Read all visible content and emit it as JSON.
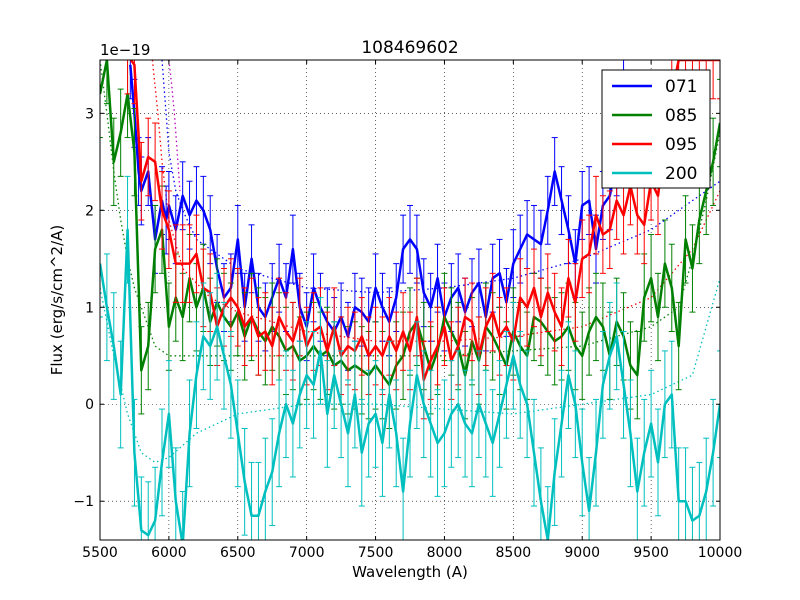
{
  "chart_data": {
    "type": "line",
    "title": "108469602",
    "xlabel": "Wavelength (A)",
    "ylabel": "Flux (erg/s/cm^2/A)",
    "offset_label": "1e−19",
    "xlim": [
      5500,
      10000
    ],
    "ylim": [
      -1.4,
      3.55
    ],
    "xticks": [
      5500,
      6000,
      6500,
      7000,
      7500,
      8000,
      8500,
      9000,
      9500,
      10000
    ],
    "yticks": [
      -1,
      0,
      1,
      2,
      3
    ],
    "ytick_labels": [
      "−1",
      "0",
      "1",
      "2",
      "3"
    ],
    "grid": true,
    "legend_position": "top-right",
    "series": [
      {
        "name": "071",
        "color": "#0000ff",
        "x": [
          5720,
          5750,
          5780,
          5800,
          5850,
          5900,
          5950,
          5980,
          6000,
          6050,
          6100,
          6150,
          6200,
          6250,
          6300,
          6350,
          6400,
          6450,
          6500,
          6550,
          6600,
          6650,
          6700,
          6750,
          6800,
          6850,
          6900,
          6950,
          7000,
          7050,
          7100,
          7150,
          7200,
          7250,
          7300,
          7350,
          7400,
          7450,
          7500,
          7550,
          7600,
          7650,
          7700,
          7750,
          7800,
          7850,
          7900,
          7950,
          8000,
          8050,
          8100,
          8150,
          8200,
          8250,
          8300,
          8350,
          8400,
          8450,
          8500,
          8550,
          8600,
          8650,
          8700,
          8750,
          8800,
          8850,
          8900,
          8950,
          9000,
          9050,
          9100,
          9150,
          9200,
          9250,
          9300
        ],
        "y": [
          3.5,
          3.0,
          2.4,
          2.2,
          2.4,
          1.7,
          2.1,
          1.9,
          2.05,
          1.8,
          2.15,
          1.95,
          2.1,
          2.0,
          1.8,
          1.4,
          1.1,
          1.2,
          1.7,
          1.0,
          1.5,
          1.0,
          0.9,
          1.1,
          1.3,
          1.1,
          1.6,
          1.0,
          0.8,
          1.2,
          1.0,
          0.85,
          0.75,
          0.9,
          0.7,
          1.0,
          0.95,
          0.85,
          1.2,
          1.0,
          0.85,
          1.1,
          1.6,
          1.7,
          1.6,
          1.15,
          1.0,
          1.3,
          0.9,
          1.1,
          1.2,
          0.95,
          1.15,
          1.25,
          0.9,
          1.3,
          1.35,
          1.05,
          1.45,
          1.6,
          1.75,
          1.7,
          1.65,
          2.0,
          2.4,
          2.1,
          1.8,
          1.45,
          2.05,
          2.1,
          1.6,
          2.05,
          2.15,
          2.5,
          3.4
        ],
        "err": 0.35
      },
      {
        "name": "085",
        "color": "#008000",
        "x": [
          5500,
          5550,
          5600,
          5650,
          5700,
          5750,
          5800,
          5850,
          5900,
          5950,
          6000,
          6050,
          6100,
          6150,
          6200,
          6250,
          6300,
          6350,
          6400,
          6450,
          6500,
          6550,
          6600,
          6650,
          6700,
          6750,
          6800,
          6850,
          6900,
          6950,
          7000,
          7050,
          7100,
          7150,
          7200,
          7250,
          7300,
          7350,
          7400,
          7450,
          7500,
          7550,
          7600,
          7650,
          7700,
          7750,
          7800,
          7850,
          7900,
          7950,
          8000,
          8050,
          8100,
          8150,
          8200,
          8250,
          8300,
          8350,
          8400,
          8450,
          8500,
          8550,
          8600,
          8650,
          8700,
          8750,
          8800,
          8850,
          8900,
          8950,
          9000,
          9050,
          9100,
          9150,
          9200,
          9250,
          9300,
          9350,
          9400,
          9450,
          9500,
          9550,
          9600,
          9650,
          9700,
          9750,
          9800,
          9850,
          9900,
          9950,
          10000
        ],
        "y": [
          3.2,
          3.55,
          2.5,
          2.8,
          3.2,
          2.6,
          0.35,
          0.6,
          1.6,
          1.8,
          0.8,
          1.1,
          0.9,
          1.3,
          1.0,
          1.2,
          0.85,
          1.05,
          0.9,
          0.8,
          0.95,
          0.7,
          0.9,
          0.75,
          0.65,
          0.8,
          0.7,
          0.55,
          0.6,
          0.45,
          0.5,
          0.6,
          0.5,
          0.55,
          0.4,
          0.45,
          0.35,
          0.4,
          0.35,
          0.3,
          0.4,
          0.3,
          0.2,
          0.4,
          0.5,
          0.75,
          0.85,
          0.6,
          0.35,
          0.55,
          0.9,
          0.75,
          0.6,
          0.3,
          0.65,
          0.45,
          0.8,
          0.7,
          0.55,
          0.4,
          0.75,
          0.6,
          0.5,
          0.9,
          0.85,
          0.75,
          0.65,
          0.7,
          0.8,
          0.6,
          0.5,
          0.75,
          0.9,
          0.8,
          0.5,
          0.85,
          0.7,
          0.4,
          0.3,
          1.1,
          1.3,
          0.9,
          1.45,
          1.2,
          0.6,
          1.7,
          1.4,
          1.9,
          2.2,
          2.5,
          2.9
        ],
        "err": 0.45
      },
      {
        "name": "095",
        "color": "#ff0000",
        "x": [
          5700,
          5750,
          5800,
          5850,
          5900,
          5950,
          6000,
          6050,
          6100,
          6150,
          6200,
          6250,
          6300,
          6350,
          6400,
          6450,
          6500,
          6550,
          6600,
          6650,
          6700,
          6750,
          6800,
          6850,
          6900,
          6950,
          7000,
          7050,
          7100,
          7150,
          7200,
          7250,
          7300,
          7350,
          7400,
          7450,
          7500,
          7550,
          7600,
          7650,
          7700,
          7750,
          7800,
          7850,
          7900,
          7950,
          8000,
          8050,
          8100,
          8150,
          8200,
          8250,
          8300,
          8350,
          8400,
          8450,
          8500,
          8550,
          8600,
          8650,
          8700,
          8750,
          8800,
          8850,
          8900,
          8950,
          9000,
          9050,
          9100,
          9150,
          9200,
          9250,
          9300,
          9350,
          9400,
          9450,
          9500,
          9550,
          9600,
          9650,
          9700,
          9750,
          9800,
          9850,
          9900,
          9950,
          10000
        ],
        "y": [
          3.6,
          3.5,
          2.3,
          2.55,
          2.5,
          2.0,
          1.8,
          1.45,
          1.45,
          1.45,
          1.55,
          1.2,
          1.15,
          0.8,
          1.0,
          1.1,
          1.0,
          0.8,
          0.9,
          0.7,
          0.75,
          0.6,
          0.9,
          0.75,
          0.65,
          0.9,
          0.6,
          0.75,
          0.8,
          0.55,
          0.8,
          0.5,
          0.6,
          0.55,
          0.7,
          0.5,
          0.6,
          0.5,
          0.7,
          0.55,
          0.75,
          0.55,
          0.9,
          0.25,
          0.45,
          0.6,
          0.8,
          0.45,
          0.6,
          0.9,
          0.85,
          0.5,
          0.8,
          0.95,
          0.7,
          0.8,
          0.65,
          1.1,
          1.0,
          1.2,
          0.9,
          1.15,
          0.95,
          0.8,
          1.3,
          1.05,
          1.5,
          1.55,
          1.95,
          1.75,
          1.8,
          2.1,
          1.95,
          2.25,
          1.95,
          1.85,
          2.3,
          2.15,
          2.7,
          3.2,
          3.55,
          3.55,
          3.55,
          3.55,
          3.55,
          3.55,
          3.55
        ],
        "err": 0.4
      },
      {
        "name": "200",
        "color": "#00bfbf",
        "x": [
          5500,
          5550,
          5600,
          5650,
          5700,
          5750,
          5800,
          5850,
          5900,
          5950,
          6000,
          6050,
          6100,
          6150,
          6200,
          6250,
          6300,
          6350,
          6400,
          6450,
          6500,
          6550,
          6600,
          6650,
          6700,
          6750,
          6800,
          6850,
          6900,
          6950,
          7000,
          7050,
          7100,
          7150,
          7200,
          7250,
          7300,
          7350,
          7400,
          7450,
          7500,
          7550,
          7600,
          7650,
          7700,
          7750,
          7800,
          7850,
          7900,
          7950,
          8000,
          8050,
          8100,
          8150,
          8200,
          8250,
          8300,
          8350,
          8400,
          8450,
          8500,
          8550,
          8600,
          8650,
          8700,
          8750,
          8800,
          8850,
          8900,
          8950,
          9000,
          9050,
          9100,
          9150,
          9200,
          9250,
          9300,
          9350,
          9400,
          9450,
          9500,
          9550,
          9600,
          9650,
          9700,
          9750,
          9800,
          9850,
          9900,
          9950,
          10000
        ],
        "y": [
          1.45,
          1.0,
          0.6,
          0.1,
          1.8,
          -0.5,
          -1.3,
          -1.35,
          -1.2,
          -0.6,
          -0.1,
          -1.0,
          -1.45,
          -0.3,
          0.3,
          0.7,
          0.6,
          0.8,
          0.5,
          0.2,
          -0.3,
          -0.8,
          -1.15,
          -1.15,
          -0.9,
          -0.7,
          -0.3,
          0.0,
          -0.2,
          0.1,
          0.3,
          0.2,
          0.55,
          -0.1,
          0.3,
          0.0,
          -0.3,
          0.1,
          -0.5,
          -0.2,
          -0.1,
          -0.4,
          0.1,
          -0.3,
          -0.9,
          -0.2,
          0.3,
          0.0,
          -0.2,
          -0.4,
          -0.3,
          -0.1,
          0.0,
          -0.2,
          -0.3,
          0.0,
          -0.2,
          -0.4,
          -0.1,
          0.2,
          0.5,
          0.2,
          0.0,
          -0.5,
          -1.0,
          -1.4,
          -0.7,
          -0.2,
          0.3,
          0.0,
          -0.6,
          -1.1,
          -0.5,
          0.2,
          0.5,
          0.7,
          0.2,
          -0.3,
          -0.9,
          -0.5,
          -0.2,
          -0.6,
          0.0,
          0.1,
          -1.0,
          -1.0,
          -1.2,
          -1.15,
          -0.9,
          -0.5,
          0.0
        ],
        "err": 0.55
      }
    ],
    "dotted_guides": [
      {
        "name": "071-guide",
        "color": "#0000ff",
        "x": [
          5950,
          5980,
          6000,
          6050,
          6100,
          6200,
          6500,
          7000,
          7500,
          8000,
          8500,
          9000,
          9500,
          10000
        ],
        "y": [
          3.55,
          3.0,
          2.6,
          2.2,
          2.0,
          1.7,
          1.4,
          1.2,
          1.15,
          1.2,
          1.3,
          1.5,
          1.8,
          2.3
        ]
      },
      {
        "name": "085-guide",
        "color": "#008000",
        "x": [
          5500,
          5550,
          5600,
          5650,
          5700,
          5750,
          5800,
          5850,
          5900,
          6000,
          6500,
          7000,
          7500,
          8000,
          8500,
          9000,
          9500,
          9700,
          9800,
          9900,
          10000
        ],
        "y": [
          3.55,
          3.0,
          2.4,
          1.9,
          1.5,
          1.2,
          1.0,
          0.8,
          0.6,
          0.5,
          0.5,
          0.5,
          0.5,
          0.5,
          0.55,
          0.6,
          0.8,
          1.0,
          1.5,
          2.1,
          2.8
        ]
      },
      {
        "name": "095-guide",
        "color": "#ff0000",
        "x": [
          5880,
          5920,
          5950,
          6000,
          6100,
          6300,
          6500,
          7000,
          7500,
          8000,
          8500,
          9000,
          9500,
          9800,
          10000
        ],
        "y": [
          3.55,
          3.0,
          2.5,
          1.9,
          1.4,
          1.1,
          0.95,
          0.75,
          0.65,
          0.65,
          0.7,
          0.8,
          1.1,
          1.6,
          2.2
        ]
      },
      {
        "name": "200-guide",
        "color": "#00bfbf",
        "x": [
          5500,
          5600,
          5700,
          5800,
          5900,
          6000,
          6200,
          6500,
          7000,
          7500,
          8000,
          8500,
          9000,
          9500,
          9800,
          9900,
          10000
        ],
        "y": [
          1.2,
          0.5,
          -0.1,
          -0.5,
          -0.6,
          -0.55,
          -0.3,
          -0.1,
          0.0,
          0.0,
          -0.05,
          -0.1,
          0.0,
          0.1,
          0.3,
          0.8,
          1.3
        ]
      },
      {
        "name": "purple-guide",
        "color": "#bf00bf",
        "x": [
          6000,
          6020,
          6040,
          6060,
          6080
        ],
        "y": [
          3.55,
          3.3,
          3.0,
          2.6,
          2.2
        ]
      }
    ]
  }
}
